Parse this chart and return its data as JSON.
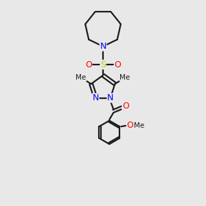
{
  "bg_color": "#e8e8e8",
  "bond_color": "#1a1a1a",
  "N_color": "#0000ff",
  "O_color": "#ff0000",
  "S_color": "#cccc00",
  "line_width": 1.6,
  "figsize": [
    3.0,
    3.0
  ],
  "dpi": 100,
  "xlim": [
    0,
    10
  ],
  "ylim": [
    0,
    10
  ]
}
